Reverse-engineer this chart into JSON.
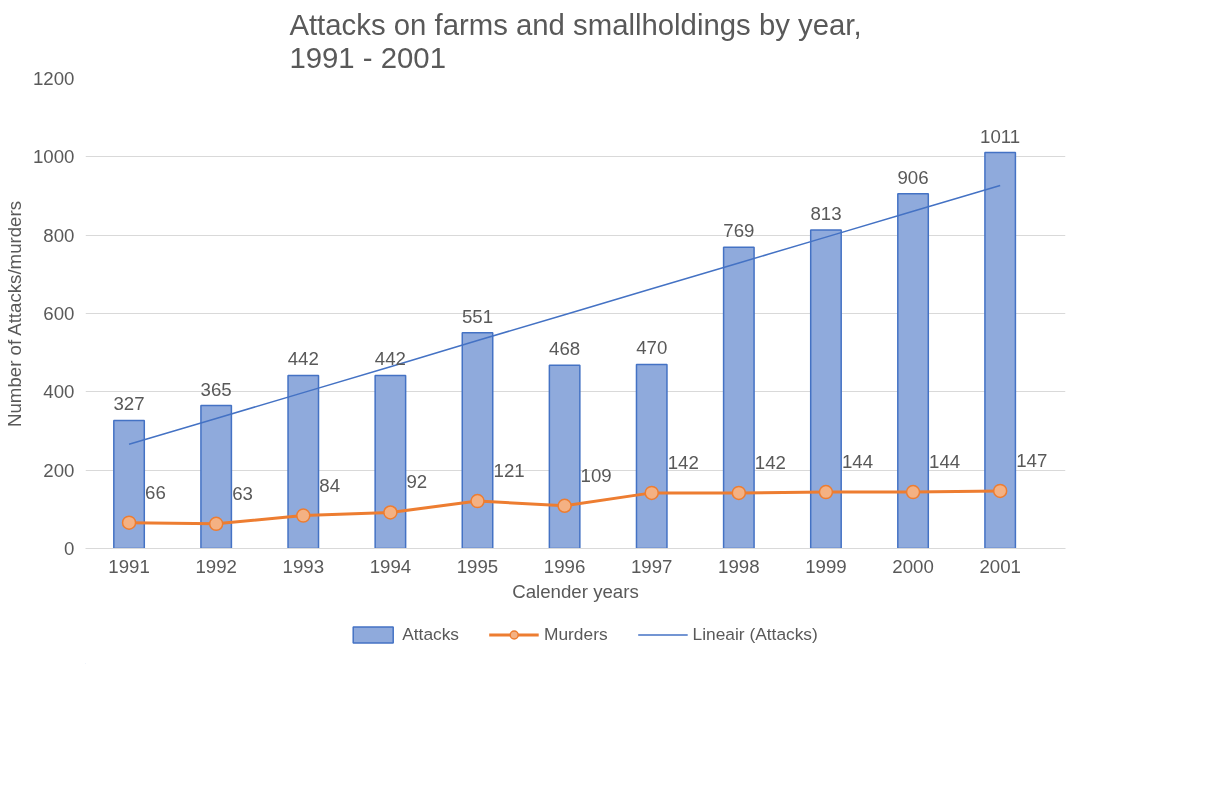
{
  "chart_data": {
    "type": "bar",
    "title": "Attacks on farms and smallholdings by year,\n1991 - 2001",
    "xlabel": "Calender years",
    "ylabel": "Number of Attacks/murders",
    "categories": [
      "1991",
      "1992",
      "1993",
      "1994",
      "1995",
      "1996",
      "1997",
      "1998",
      "1999",
      "2000",
      "2001"
    ],
    "series": [
      {
        "name": "Attacks",
        "color": "#8faadc",
        "values": [
          327,
          365,
          442,
          442,
          551,
          468,
          470,
          769,
          813,
          906,
          1011
        ],
        "value_labels": [
          "327",
          "365",
          "442",
          "442",
          "551",
          "468",
          "470",
          "769",
          "813",
          "906",
          "1011"
        ]
      },
      {
        "name": "Murders",
        "type": "line",
        "color": "#ed7d31",
        "marker": "circle",
        "values": [
          66,
          63,
          84,
          92,
          121,
          109,
          142,
          142,
          144,
          144,
          147
        ],
        "value_labels": [
          "66",
          "63",
          "84",
          "92",
          "121",
          "109",
          "142",
          "142",
          "144",
          "144",
          "147"
        ]
      },
      {
        "name": "Lineair (Attacks)",
        "type": "line",
        "color": "#4472c4",
        "values": [
          266,
          332,
          398,
          464,
          531,
          597,
          663,
          729,
          795,
          861,
          927
        ]
      }
    ],
    "ylim": [
      0,
      1200
    ],
    "yticks": [
      0,
      200,
      400,
      600,
      800,
      1000,
      1200
    ],
    "grid": "y",
    "legend": "bottom"
  }
}
